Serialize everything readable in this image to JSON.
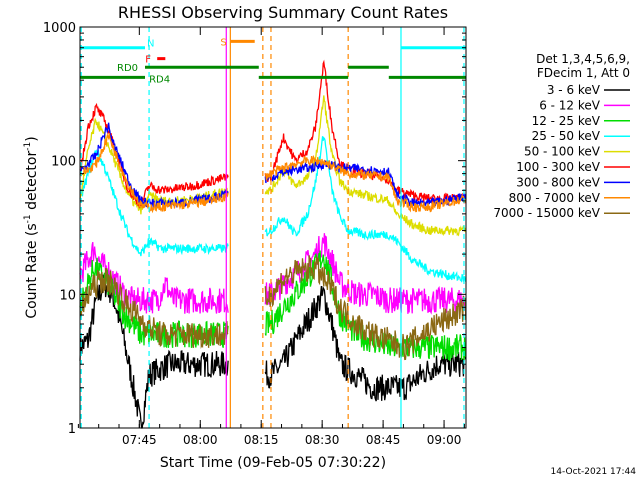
{
  "chart_data": {
    "type": "line",
    "title": "RHESSI Observing Summary Count Rates",
    "xlabel": "Start Time (09-Feb-05 07:30:22)",
    "ylabel_main": "Count Rate (s",
    "ylabel_sup1": "-1",
    "ylabel_mid": " detector",
    "ylabel_sup2": "-1",
    "ylabel_end": ")",
    "y_scale": "log",
    "ylim": [
      1,
      1000
    ],
    "xlim_minutes": [
      0,
      95
    ],
    "x_ticks": [
      {
        "label": "07:45",
        "t": 14.6
      },
      {
        "label": "08:00",
        "t": 29.6
      },
      {
        "label": "08:15",
        "t": 44.6
      },
      {
        "label": "08:30",
        "t": 59.6
      },
      {
        "label": "08:45",
        "t": 74.6
      },
      {
        "label": "09:00",
        "t": 89.6
      }
    ],
    "y_ticks": [
      {
        "label": "1",
        "v": 1
      },
      {
        "label": "10",
        "v": 10
      },
      {
        "label": "100",
        "v": 100
      },
      {
        "label": "1000",
        "v": 1000
      }
    ],
    "legend_header": [
      "Det 1,3,4,5,6,9,",
      "FDecim 1, Att 0"
    ],
    "legend_placement": "right",
    "series": [
      {
        "name": "3 - 6 keV",
        "color": "#000000",
        "points": [
          [
            0,
            4
          ],
          [
            2,
            4.5
          ],
          [
            4,
            9
          ],
          [
            6,
            12
          ],
          [
            8,
            10
          ],
          [
            10,
            6
          ],
          [
            12,
            3
          ],
          [
            14,
            1.5
          ],
          [
            15,
            1
          ],
          [
            17,
            2.5
          ],
          [
            22,
            3
          ],
          [
            26,
            3
          ],
          [
            30,
            3
          ],
          [
            34,
            3
          ],
          [
            36,
            3
          ],
          [
            47,
            2.5
          ],
          [
            50,
            3
          ],
          [
            54,
            5
          ],
          [
            58,
            8
          ],
          [
            60,
            10
          ],
          [
            62,
            6
          ],
          [
            64,
            3
          ],
          [
            68,
            2.5
          ],
          [
            72,
            2
          ],
          [
            76,
            2
          ],
          [
            80,
            2
          ],
          [
            84,
            2.5
          ],
          [
            88,
            3
          ],
          [
            92,
            3
          ],
          [
            95,
            3
          ]
        ]
      },
      {
        "name": "6 - 12 keV",
        "color": "#ff00ff",
        "points": [
          [
            0,
            14
          ],
          [
            2,
            18
          ],
          [
            3.5,
            22
          ],
          [
            5,
            17
          ],
          [
            7,
            15
          ],
          [
            9,
            12
          ],
          [
            11,
            10
          ],
          [
            13,
            9
          ],
          [
            15,
            9
          ],
          [
            17,
            9
          ],
          [
            19,
            9
          ],
          [
            21,
            12
          ],
          [
            23,
            9
          ],
          [
            26,
            9
          ],
          [
            30,
            9
          ],
          [
            34,
            9
          ],
          [
            36,
            9
          ],
          [
            47,
            10
          ],
          [
            50,
            12
          ],
          [
            54,
            15
          ],
          [
            58,
            20
          ],
          [
            60,
            25
          ],
          [
            62,
            18
          ],
          [
            64,
            12
          ],
          [
            68,
            10
          ],
          [
            72,
            10
          ],
          [
            76,
            9
          ],
          [
            80,
            9
          ],
          [
            84,
            9
          ],
          [
            88,
            9
          ],
          [
            92,
            9
          ],
          [
            95,
            9
          ]
        ]
      },
      {
        "name": "12 - 25 keV",
        "color": "#00dd00",
        "points": [
          [
            0,
            8
          ],
          [
            2,
            12
          ],
          [
            3.5,
            16
          ],
          [
            5,
            14
          ],
          [
            7,
            12
          ],
          [
            9,
            9
          ],
          [
            11,
            7
          ],
          [
            13,
            6
          ],
          [
            15,
            5
          ],
          [
            17,
            5
          ],
          [
            20,
            5
          ],
          [
            24,
            5
          ],
          [
            28,
            5
          ],
          [
            32,
            5
          ],
          [
            36,
            5
          ],
          [
            47,
            6
          ],
          [
            50,
            8
          ],
          [
            54,
            11
          ],
          [
            58,
            16
          ],
          [
            60,
            20
          ],
          [
            62,
            12
          ],
          [
            64,
            7
          ],
          [
            68,
            5
          ],
          [
            72,
            4.5
          ],
          [
            76,
            4
          ],
          [
            80,
            4
          ],
          [
            84,
            4
          ],
          [
            88,
            4
          ],
          [
            92,
            4
          ],
          [
            95,
            4
          ]
        ]
      },
      {
        "name": "25 - 50 keV",
        "color": "#00ffff",
        "points": [
          [
            0,
            50
          ],
          [
            2,
            80
          ],
          [
            4,
            120
          ],
          [
            6,
            90
          ],
          [
            8,
            60
          ],
          [
            10,
            40
          ],
          [
            12,
            28
          ],
          [
            14,
            22
          ],
          [
            15,
            20
          ],
          [
            17,
            25
          ],
          [
            20,
            22
          ],
          [
            24,
            22
          ],
          [
            28,
            22
          ],
          [
            32,
            22
          ],
          [
            36,
            22
          ],
          [
            47,
            30
          ],
          [
            50,
            38
          ],
          [
            53,
            28
          ],
          [
            56,
            40
          ],
          [
            58,
            70
          ],
          [
            60,
            160
          ],
          [
            62,
            60
          ],
          [
            64,
            38
          ],
          [
            66,
            30
          ],
          [
            70,
            28
          ],
          [
            74,
            28
          ],
          [
            76,
            28
          ],
          [
            78,
            25
          ],
          [
            82,
            18
          ],
          [
            86,
            15
          ],
          [
            90,
            14
          ],
          [
            95,
            13
          ]
        ]
      },
      {
        "name": "50 - 100 keV",
        "color": "#dddd00",
        "points": [
          [
            0,
            50
          ],
          [
            2,
            120
          ],
          [
            4,
            200
          ],
          [
            6,
            150
          ],
          [
            8,
            110
          ],
          [
            10,
            75
          ],
          [
            12,
            55
          ],
          [
            14,
            45
          ],
          [
            15,
            43
          ],
          [
            17,
            55
          ],
          [
            20,
            50
          ],
          [
            24,
            50
          ],
          [
            28,
            52
          ],
          [
            32,
            55
          ],
          [
            36,
            60
          ],
          [
            47,
            60
          ],
          [
            50,
            85
          ],
          [
            53,
            65
          ],
          [
            56,
            75
          ],
          [
            58,
            100
          ],
          [
            60,
            300
          ],
          [
            62,
            110
          ],
          [
            64,
            70
          ],
          [
            66,
            60
          ],
          [
            70,
            55
          ],
          [
            74,
            52
          ],
          [
            76,
            50
          ],
          [
            78,
            40
          ],
          [
            82,
            33
          ],
          [
            86,
            30
          ],
          [
            90,
            30
          ],
          [
            95,
            30
          ]
        ]
      },
      {
        "name": "100 - 300 keV",
        "color": "#ff0000",
        "points": [
          [
            0,
            80
          ],
          [
            2,
            180
          ],
          [
            4,
            250
          ],
          [
            6,
            200
          ],
          [
            8,
            140
          ],
          [
            10,
            90
          ],
          [
            12,
            60
          ],
          [
            14,
            50
          ],
          [
            15,
            47
          ],
          [
            17,
            65
          ],
          [
            20,
            60
          ],
          [
            24,
            62
          ],
          [
            28,
            65
          ],
          [
            32,
            70
          ],
          [
            36,
            75
          ],
          [
            47,
            75
          ],
          [
            50,
            150
          ],
          [
            53,
            100
          ],
          [
            56,
            120
          ],
          [
            58,
            180
          ],
          [
            60,
            550
          ],
          [
            62,
            180
          ],
          [
            64,
            95
          ],
          [
            66,
            85
          ],
          [
            70,
            80
          ],
          [
            74,
            75
          ],
          [
            76,
            72
          ],
          [
            78,
            60
          ],
          [
            82,
            55
          ],
          [
            86,
            52
          ],
          [
            90,
            52
          ],
          [
            95,
            52
          ]
        ]
      },
      {
        "name": "300 - 800 keV",
        "color": "#0000ff",
        "points": [
          [
            0,
            80
          ],
          [
            2,
            95
          ],
          [
            4,
            110
          ],
          [
            6,
            160
          ],
          [
            7,
            180
          ],
          [
            8,
            140
          ],
          [
            10,
            100
          ],
          [
            12,
            70
          ],
          [
            14,
            55
          ],
          [
            15,
            50
          ],
          [
            17,
            48
          ],
          [
            20,
            48
          ],
          [
            24,
            48
          ],
          [
            28,
            50
          ],
          [
            32,
            52
          ],
          [
            36,
            58
          ],
          [
            47,
            75
          ],
          [
            50,
            82
          ],
          [
            53,
            86
          ],
          [
            56,
            88
          ],
          [
            58,
            90
          ],
          [
            60,
            95
          ],
          [
            62,
            92
          ],
          [
            64,
            88
          ],
          [
            66,
            88
          ],
          [
            70,
            86
          ],
          [
            74,
            84
          ],
          [
            76,
            82
          ],
          [
            78,
            55
          ],
          [
            82,
            48
          ],
          [
            86,
            48
          ],
          [
            90,
            50
          ],
          [
            95,
            55
          ]
        ]
      },
      {
        "name": "800 - 7000 keV",
        "color": "#ff8800",
        "points": [
          [
            0,
            80
          ],
          [
            2,
            85
          ],
          [
            4,
            95
          ],
          [
            6,
            130
          ],
          [
            7,
            155
          ],
          [
            8,
            130
          ],
          [
            10,
            90
          ],
          [
            12,
            65
          ],
          [
            14,
            52
          ],
          [
            15,
            46
          ],
          [
            17,
            45
          ],
          [
            20,
            45
          ],
          [
            24,
            46
          ],
          [
            28,
            48
          ],
          [
            32,
            50
          ],
          [
            36,
            54
          ],
          [
            47,
            80
          ],
          [
            50,
            88
          ],
          [
            53,
            95
          ],
          [
            56,
            100
          ],
          [
            58,
            100
          ],
          [
            60,
            98
          ],
          [
            62,
            92
          ],
          [
            64,
            85
          ],
          [
            66,
            80
          ],
          [
            70,
            78
          ],
          [
            74,
            76
          ],
          [
            76,
            75
          ],
          [
            78,
            50
          ],
          [
            82,
            45
          ],
          [
            86,
            45
          ],
          [
            90,
            48
          ],
          [
            95,
            52
          ]
        ]
      },
      {
        "name": "7000 - 15000 keV",
        "color": "#8b6914",
        "points": [
          [
            0,
            7
          ],
          [
            2,
            10
          ],
          [
            4,
            12
          ],
          [
            6,
            13
          ],
          [
            8,
            12
          ],
          [
            10,
            10
          ],
          [
            12,
            8
          ],
          [
            14,
            7
          ],
          [
            16,
            6
          ],
          [
            20,
            5
          ],
          [
            24,
            5
          ],
          [
            28,
            5
          ],
          [
            32,
            5
          ],
          [
            36,
            5
          ],
          [
            47,
            10
          ],
          [
            50,
            13
          ],
          [
            54,
            15
          ],
          [
            58,
            16
          ],
          [
            60,
            13
          ],
          [
            62,
            11
          ],
          [
            64,
            8
          ],
          [
            68,
            6
          ],
          [
            72,
            5
          ],
          [
            76,
            4.5
          ],
          [
            80,
            4
          ],
          [
            84,
            5
          ],
          [
            88,
            6
          ],
          [
            92,
            7
          ],
          [
            95,
            8
          ]
        ]
      }
    ],
    "shading_gap_minutes": [
      36.5,
      45.5
    ],
    "vertical_markers": [
      {
        "t": 0.3,
        "color": "#00ffff",
        "style": "dashed"
      },
      {
        "t": 17,
        "color": "#00ffff",
        "style": "dashed"
      },
      {
        "t": 79,
        "color": "#00ffff",
        "style": "solid"
      },
      {
        "t": 94.5,
        "color": "#00ffff",
        "style": "dashed"
      },
      {
        "t": 37,
        "color": "#ff8800",
        "style": "solid"
      },
      {
        "t": 45,
        "color": "#ff8800",
        "style": "dashed"
      },
      {
        "t": 36,
        "color": "#ff00ff",
        "style": "solid"
      },
      {
        "t": 47,
        "color": "#ff8800",
        "style": "dashed"
      },
      {
        "t": 66,
        "color": "#ff8800",
        "style": "dashed"
      }
    ],
    "flags": [
      {
        "label": "N",
        "color": "#00ffff",
        "segments": [
          [
            0,
            16
          ],
          [
            79,
            95
          ]
        ],
        "v": 700
      },
      {
        "label": "S",
        "color": "#ff8800",
        "segments": [
          [
            37,
            43
          ]
        ],
        "v": 780
      },
      {
        "label": "F",
        "color": "#ff0000",
        "segments": [
          [
            19,
            21
          ]
        ],
        "v": 580
      },
      {
        "label": "RD0",
        "color": "#008800",
        "segments": [
          [
            16,
            44
          ],
          [
            66,
            76
          ]
        ],
        "v": 500,
        "label_t": 11
      },
      {
        "label": "RD4",
        "color": "#008800",
        "segments": [
          [
            0,
            16
          ],
          [
            44,
            66
          ],
          [
            76,
            95
          ]
        ],
        "v": 420,
        "label_t": 19
      }
    ],
    "footer_date": "14-Oct-2021 17:44"
  }
}
